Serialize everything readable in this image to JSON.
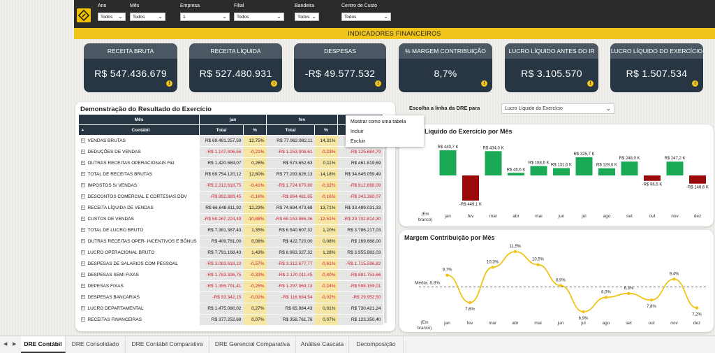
{
  "filters": [
    {
      "label": "Ano",
      "value": "Todos"
    },
    {
      "label": "Mês",
      "value": "Todos"
    },
    {
      "label": "Empresa",
      "value": "1"
    },
    {
      "label": "Filial",
      "value": "Todos"
    },
    {
      "label": "Bandeira",
      "value": "Todos"
    },
    {
      "label": "Centro de Custo",
      "value": "Todos"
    }
  ],
  "banner": "INDICADORES FINANCEIROS",
  "kpis": [
    {
      "title": "RECEITA BRUTA",
      "value": "R$ 547.436.679"
    },
    {
      "title": "RECEITA LÍQUIDA",
      "value": "R$ 527.480.931"
    },
    {
      "title": "DESPESAS",
      "value": "-R$ 49.577.532"
    },
    {
      "title": "% MARGEM CONTRIBUIÇÃO",
      "value": "8,7%"
    },
    {
      "title": "LUCRO LÍQUIDO ANTES DO IR",
      "value": "R$ 3.105.570"
    },
    {
      "title": "LUCRO LÍQUIDO DO EXERCÍCIO",
      "value": "R$ 1.507.534"
    }
  ],
  "dre": {
    "title": "Demonstração do Resultado do Exercício",
    "month_header": "Mês",
    "months": [
      "jan",
      "fev",
      ""
    ],
    "row_header": "Contábil",
    "sort_indicator": "▲",
    "col_total": "Total",
    "col_pct": "%",
    "rows": [
      {
        "label": "VENDAS BRUTAS",
        "jan": "R$ 69.481.257,59",
        "janp": "12,75%",
        "fev": "R$ 77.962.982,11",
        "fevp": "14,31%",
        "mar": "R$"
      },
      {
        "label": "DEDUÇÕES DE VENDAS",
        "jan": "-R$ 1.147.806,56",
        "janp": "-0,21%",
        "fev": "-R$ 1.253.008,61",
        "fevp": "-0,23%",
        "mar": "-R$ 125.684,79"
      },
      {
        "label": "OUTRAS RECEITAS OPERACIONAIS F&I",
        "jan": "R$ 1.420.669,07",
        "janp": "0,26%",
        "fev": "R$ 573.652,63",
        "fevp": "0,11%",
        "mar": "R$ 461.819,69"
      },
      {
        "label": "TOTAL DE RECEITAS BRUTAS",
        "jan": "R$ 69.754.120,12",
        "janp": "12,80%",
        "fev": "R$ 77.283.626,13",
        "fevp": "14,18%",
        "mar": "R$ 34.645.059,49"
      },
      {
        "label": "IMPOSTOS S/ VENDAS",
        "jan": "-R$ 2.212.618,75",
        "janp": "-0,41%",
        "fev": "-R$ 1.724.670,80",
        "fevp": "-0,32%",
        "mar": "-R$ 812.668,09"
      },
      {
        "label": "DESCONTOS COMERCIAL E CORTESIAS DDV",
        "jan": "-R$ 892.889,45",
        "janp": "-0,16%",
        "fev": "-R$ 864.481,65",
        "fevp": "-0,16%",
        "mar": "-R$ 343.360,07"
      },
      {
        "label": "RECEITA LÍQUIDA DE VENDAS",
        "jan": "R$ 66.648.611,92",
        "janp": "12,23%",
        "fev": "R$ 74.694.473,68",
        "fevp": "13,71%",
        "mar": "R$ 33.489.031,33"
      },
      {
        "label": "CUSTOS DE VENDAS",
        "jan": "-R$ 59.267.224,49",
        "janp": "-10,88%",
        "fev": "-R$ 68.153.866,36",
        "fevp": "-12,51%",
        "mar": "-R$ 29.702.814,30"
      },
      {
        "label": "TOTAL DE LUCRO BRUTO",
        "jan": "R$ 7.381.387,43",
        "janp": "1,35%",
        "fev": "R$ 6.540.607,32",
        "fevp": "1,20%",
        "mar": "R$ 3.786.217,03"
      },
      {
        "label": "OUTRAS RECEITAS OPER- INCENTIVOS E BÔNUS",
        "jan": "R$ 409.781,00",
        "janp": "0,08%",
        "fev": "R$ 422.720,00",
        "fevp": "0,08%",
        "mar": "R$ 169.666,00"
      },
      {
        "label": "LUCRO OPERACIONAL BRUTO",
        "jan": "R$ 7.791.168,43",
        "janp": "1,43%",
        "fev": "R$ 6.963.327,32",
        "fevp": "1,28%",
        "mar": "R$ 3.955.883,03"
      },
      {
        "label": "DESPESAS DE SALARIOS COM PESSOAL",
        "jan": "-R$ 3.083.618,10",
        "janp": "-0,57%",
        "fev": "-R$ 3.312.677,77",
        "fevp": "-0,61%",
        "mar": "-R$ 1.715.596,82"
      },
      {
        "label": "DESPESAS SEMI FIXAS",
        "jan": "-R$ 1.783.336,75",
        "janp": "-0,33%",
        "fev": "-R$ 2.170.011,45",
        "fevp": "-0,40%",
        "mar": "-R$ 881.753,66"
      },
      {
        "label": "DEPESAS FIXAS",
        "jan": "-R$ 1.355.791,41",
        "janp": "-0,25%",
        "fev": "-R$ 1.297.969,13",
        "fevp": "-0,24%",
        "mar": "-R$ 598.159,01"
      },
      {
        "label": "DESPESAS BANCARIAS",
        "jan": "-R$ 93.342,15",
        "janp": "-0,02%",
        "fev": "-R$ 116.684,54",
        "fevp": "-0,02%",
        "mar": "-R$ 29.952,50"
      },
      {
        "label": "LUCRO DEPARTAMENTAL",
        "jan": "R$ 1.475.080,02",
        "janp": "0,27%",
        "fev": "R$ 65.984,43",
        "fevp": "0,01%",
        "mar": "R$ 730.421,24"
      },
      {
        "label": "RECEITAS FINANCEIRAS",
        "jan": "R$ 377.252,68",
        "janp": "0,07%",
        "fev": "R$ 358.761,76",
        "fevp": "0,07%",
        "mar": "R$ 123.350,40"
      }
    ]
  },
  "context_menu": [
    "Mostrar como uma tabela",
    "Incluir",
    "Excluir"
  ],
  "chooser": {
    "label": "Escolha a linha da DRE para",
    "value": "Lucro Líquido do Exercício"
  },
  "chart_data": [
    {
      "type": "bar",
      "title": "Líquido do Exercício por Mês",
      "categories": [
        "(Em branco)",
        "jan",
        "fev",
        "mar",
        "abr",
        "mai",
        "jun",
        "jul",
        "ago",
        "set",
        "out",
        "nov",
        "dez"
      ],
      "values": [
        null,
        449.7,
        -449.1,
        434.0,
        46.6,
        168.6,
        131.6,
        325.7,
        128.6,
        248.0,
        -96.5,
        247.2,
        -146.6
      ],
      "labels": [
        "",
        "R$ 449,7 K",
        "-R$ 449,1 K",
        "R$ 434,0 K",
        "R$ 46,6 K",
        "R$ 168,6 K",
        "R$ 131,6 K",
        "R$ 325,7 K",
        "R$ 128,6 K",
        "R$ 248,0 K",
        "-R$ 96,5 K",
        "R$ 247,2 K",
        "-R$ 146,6 K"
      ],
      "colors": {
        "positive": "#1aaa55",
        "negative": "#9b0a0a"
      }
    },
    {
      "type": "line",
      "title": "Margem Contribuição por Mês",
      "categories": [
        "(Em branco)",
        "jan",
        "fev",
        "mar",
        "abr",
        "mai",
        "jun",
        "jul",
        "ago",
        "set",
        "out",
        "nov",
        "dez"
      ],
      "values": [
        null,
        9.7,
        7.6,
        10.3,
        11.5,
        10.5,
        8.9,
        6.9,
        8.0,
        8.3,
        7.8,
        9.4,
        7.2
      ],
      "labels": [
        "",
        "9,7%",
        "7,6%",
        "10,3%",
        "11,5%",
        "10,5%",
        "8,9%",
        "6,9%",
        "8,0%",
        "8,3%",
        "7,8%",
        "9,4%",
        "7,2%"
      ],
      "average": 8.8,
      "average_label": "Média: 8,8%",
      "colors": {
        "line": "#f0c419",
        "average": "#666666"
      }
    }
  ],
  "tabs": [
    "DRE Contábil",
    "DRE Consolidado",
    "DRE Contábil Comparativa",
    "DRE Gerencial Comparativa",
    "Análise Cascata",
    "Decomposição"
  ],
  "tab_nav": {
    "prev": "◀",
    "next": "▶"
  },
  "icons": {
    "logo": "diamond-logo-icon",
    "info": "info-icon",
    "chevron": "chevron-down-icon",
    "expand": "expand-row-icon"
  }
}
